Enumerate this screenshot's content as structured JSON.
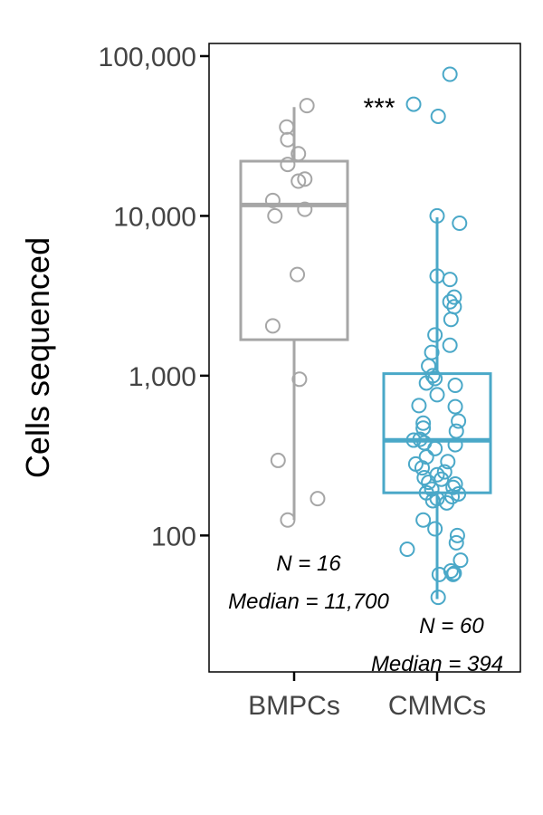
{
  "chart_data": {
    "type": "box",
    "ylabel": "Cells sequenced",
    "y_scale": "log10",
    "ylim": [
      14,
      120000
    ],
    "y_ticks": [
      {
        "value": 100,
        "label": "100"
      },
      {
        "value": 1000,
        "label": "1,000"
      },
      {
        "value": 10000,
        "label": "10,000"
      },
      {
        "value": 100000,
        "label": "100,000"
      }
    ],
    "categories": [
      "BMPCs",
      "CMMCs"
    ],
    "significance": {
      "label": "***",
      "y": 50000
    },
    "groups": [
      {
        "name": "BMPCs",
        "color": "#a6a6a6",
        "box": {
          "whisker_low": 125,
          "q1": 1680,
          "median": 11700,
          "q3": 22000,
          "whisker_high": 48000
        },
        "n_label": "N = 16",
        "median_label": "Median = 11,700",
        "points": [
          {
            "offset": 0.12,
            "y": 49000
          },
          {
            "offset": -0.07,
            "y": 36000
          },
          {
            "offset": -0.06,
            "y": 30000
          },
          {
            "offset": 0.04,
            "y": 24500
          },
          {
            "offset": -0.06,
            "y": 21000
          },
          {
            "offset": 0.1,
            "y": 17000
          },
          {
            "offset": 0.04,
            "y": 16500
          },
          {
            "offset": -0.2,
            "y": 12500
          },
          {
            "offset": 0.1,
            "y": 11000
          },
          {
            "offset": -0.18,
            "y": 10000
          },
          {
            "offset": 0.03,
            "y": 4300
          },
          {
            "offset": -0.2,
            "y": 2050
          },
          {
            "offset": 0.05,
            "y": 950
          },
          {
            "offset": -0.15,
            "y": 295
          },
          {
            "offset": 0.22,
            "y": 170
          },
          {
            "offset": -0.06,
            "y": 125
          }
        ]
      },
      {
        "name": "CMMCs",
        "color": "#4aa8c8",
        "box": {
          "whisker_low": 40,
          "q1": 185,
          "median": 394,
          "q3": 1030,
          "whisker_high": 9800
        },
        "n_label": "N = 60",
        "median_label": "Median = 394",
        "points": [
          {
            "offset": 0.12,
            "y": 77000
          },
          {
            "offset": -0.22,
            "y": 50000
          },
          {
            "offset": 0.01,
            "y": 42000
          },
          {
            "offset": 0.0,
            "y": 10000
          },
          {
            "offset": 0.21,
            "y": 9000
          },
          {
            "offset": 0.0,
            "y": 4200
          },
          {
            "offset": 0.12,
            "y": 4000
          },
          {
            "offset": 0.16,
            "y": 3100
          },
          {
            "offset": 0.12,
            "y": 2900
          },
          {
            "offset": 0.16,
            "y": 2700
          },
          {
            "offset": 0.13,
            "y": 2250
          },
          {
            "offset": -0.02,
            "y": 1800
          },
          {
            "offset": 0.12,
            "y": 1550
          },
          {
            "offset": -0.05,
            "y": 1400
          },
          {
            "offset": -0.08,
            "y": 1150
          },
          {
            "offset": -0.04,
            "y": 1000
          },
          {
            "offset": -0.02,
            "y": 960
          },
          {
            "offset": -0.1,
            "y": 900
          },
          {
            "offset": 0.17,
            "y": 870
          },
          {
            "offset": 0.0,
            "y": 760
          },
          {
            "offset": -0.17,
            "y": 650
          },
          {
            "offset": 0.17,
            "y": 640
          },
          {
            "offset": 0.2,
            "y": 520
          },
          {
            "offset": -0.13,
            "y": 505
          },
          {
            "offset": -0.13,
            "y": 470
          },
          {
            "offset": 0.18,
            "y": 450
          },
          {
            "offset": -0.16,
            "y": 400
          },
          {
            "offset": -0.22,
            "y": 395
          },
          {
            "offset": -0.12,
            "y": 380
          },
          {
            "offset": 0.17,
            "y": 370
          },
          {
            "offset": -0.02,
            "y": 350
          },
          {
            "offset": -0.1,
            "y": 310
          },
          {
            "offset": 0.1,
            "y": 290
          },
          {
            "offset": -0.2,
            "y": 280
          },
          {
            "offset": -0.14,
            "y": 265
          },
          {
            "offset": 0.07,
            "y": 250
          },
          {
            "offset": 0.0,
            "y": 240
          },
          {
            "offset": -0.12,
            "y": 230
          },
          {
            "offset": 0.04,
            "y": 225
          },
          {
            "offset": -0.08,
            "y": 215
          },
          {
            "offset": 0.17,
            "y": 210
          },
          {
            "offset": 0.15,
            "y": 200
          },
          {
            "offset": -0.05,
            "y": 195
          },
          {
            "offset": -0.1,
            "y": 185
          },
          {
            "offset": 0.2,
            "y": 182
          },
          {
            "offset": 0.14,
            "y": 175
          },
          {
            "offset": 0.0,
            "y": 170
          },
          {
            "offset": -0.04,
            "y": 165
          },
          {
            "offset": 0.09,
            "y": 160
          },
          {
            "offset": -0.13,
            "y": 125
          },
          {
            "offset": -0.02,
            "y": 110
          },
          {
            "offset": 0.19,
            "y": 100
          },
          {
            "offset": 0.18,
            "y": 90
          },
          {
            "offset": -0.28,
            "y": 82
          },
          {
            "offset": 0.22,
            "y": 70
          },
          {
            "offset": 0.13,
            "y": 60
          },
          {
            "offset": 0.16,
            "y": 58
          },
          {
            "offset": 0.15,
            "y": 57
          },
          {
            "offset": 0.02,
            "y": 57
          },
          {
            "offset": 0.01,
            "y": 41
          }
        ]
      }
    ]
  }
}
